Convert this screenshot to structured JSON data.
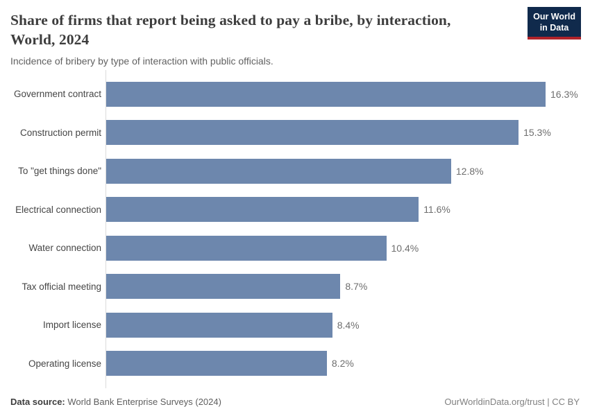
{
  "header": {
    "title": "Share of firms that report being asked to pay a bribe, by interaction, World, 2024",
    "title_line1": "Share of firms that report being asked to pay a bribe, by interaction,",
    "title_line2": "World, 2024",
    "subtitle": "Incidence of bribery by type of interaction with public officials."
  },
  "logo": {
    "line1": "Our World",
    "line2": "in Data",
    "bg_color": "#102a4c",
    "accent_color": "#b0232a"
  },
  "chart_data": {
    "type": "bar",
    "orientation": "horizontal",
    "title": "Share of firms that report being asked to pay a bribe, by interaction, World, 2024",
    "subtitle": "Incidence of bribery by type of interaction with public officials.",
    "categories": [
      "Government contract",
      "Construction permit",
      "To \"get things done\"",
      "Electrical connection",
      "Water connection",
      "Tax official meeting",
      "Import license",
      "Operating license"
    ],
    "values": [
      16.3,
      15.3,
      12.8,
      11.6,
      10.4,
      8.7,
      8.4,
      8.2
    ],
    "value_labels": [
      "16.3%",
      "15.3%",
      "12.8%",
      "11.6%",
      "10.4%",
      "8.7%",
      "8.4%",
      "8.2%"
    ],
    "unit": "%",
    "xlim": [
      0,
      16.3
    ],
    "grid": false,
    "legend": "none",
    "bar_color": "#6d87ad",
    "axis_color": "#dbdbdb",
    "value_labels_position": "end"
  },
  "footer": {
    "data_source_label": "Data source:",
    "data_source_value": " World Bank Enterprise Surveys (2024)",
    "attribution": "OurWorldinData.org/trust | CC BY"
  }
}
